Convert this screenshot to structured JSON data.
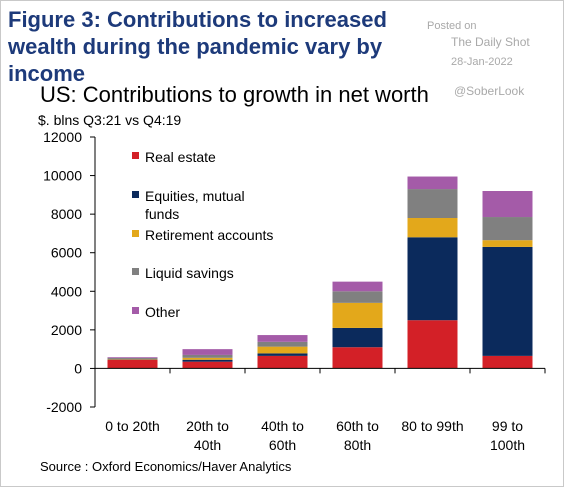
{
  "figure_title": "Figure 3: Contributions to increased wealth during the pandemic vary by income",
  "watermark": {
    "posted_on": "Posted on",
    "site": "The Daily Shot",
    "date": "28-Jan-2022",
    "handle": "@SoberLook"
  },
  "source": "Source : Oxford Economics/Haver Analytics",
  "chart_data": {
    "type": "bar",
    "stacked": true,
    "title": "US: Contributions to growth in net worth",
    "subtitle": "$. blns Q3:21 vs Q4:19",
    "categories": [
      [
        "0 to 20th"
      ],
      [
        "20th to",
        "40th"
      ],
      [
        "40th to",
        "60th"
      ],
      [
        "60th to",
        "80th"
      ],
      [
        "80 to 99th"
      ],
      [
        "99 to",
        "100th"
      ]
    ],
    "ylim": [
      -2000,
      12000
    ],
    "yticks": [
      -2000,
      0,
      2000,
      4000,
      6000,
      8000,
      10000,
      12000
    ],
    "series": [
      {
        "name": "Real estate",
        "color": "#d32027",
        "values": [
          450,
          350,
          650,
          1100,
          2500,
          650
        ]
      },
      {
        "name": "Equities, mutual funds",
        "color": "#0b2a5c",
        "values": [
          20,
          100,
          130,
          1000,
          4300,
          5650
        ]
      },
      {
        "name": "Retirement accounts",
        "color": "#e3a81b",
        "values": [
          20,
          100,
          350,
          1300,
          1000,
          350
        ]
      },
      {
        "name": "Liquid savings",
        "color": "#808080",
        "values": [
          50,
          150,
          250,
          600,
          1500,
          1200
        ]
      },
      {
        "name": "Other",
        "color": "#a45ba8",
        "values": [
          40,
          300,
          350,
          500,
          650,
          1350
        ]
      }
    ],
    "legend_location": "top-left",
    "grid": false
  }
}
